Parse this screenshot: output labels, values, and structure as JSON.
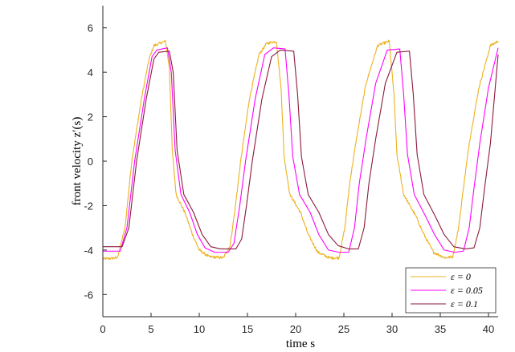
{
  "chart_data": {
    "type": "line",
    "xlabel": "time s",
    "ylabel": "front velocity z′(s)",
    "xlim": [
      0,
      41
    ],
    "ylim": [
      -7,
      7
    ],
    "xticks": [
      0,
      5,
      10,
      15,
      20,
      25,
      30,
      35,
      40
    ],
    "yticks": [
      -6,
      -4,
      -2,
      0,
      2,
      4,
      6
    ],
    "xtick_labels": [
      "0",
      "5",
      "10",
      "15",
      "20",
      "25",
      "30",
      "35",
      "40"
    ],
    "ytick_labels": [
      "-6",
      "-4",
      "-2",
      "0",
      "2",
      "4",
      "6"
    ],
    "grid": false,
    "legend_position": "bottom-right",
    "series": [
      {
        "name": "ε = 0",
        "color": "#EDB120",
        "noisy": true,
        "points": [
          [
            0,
            -4.4
          ],
          [
            1.5,
            -4.35
          ],
          [
            2.3,
            -3.0
          ],
          [
            3.0,
            0.0
          ],
          [
            4.0,
            2.8
          ],
          [
            4.8,
            4.6
          ],
          [
            5.3,
            5.2
          ],
          [
            6.5,
            5.4
          ],
          [
            6.9,
            4.2
          ],
          [
            7.2,
            0.5
          ],
          [
            7.6,
            -1.5
          ],
          [
            8.5,
            -2.3
          ],
          [
            9.3,
            -3.3
          ],
          [
            10.0,
            -4.0
          ],
          [
            11.0,
            -4.3
          ],
          [
            12.5,
            -4.35
          ],
          [
            13.2,
            -3.8
          ],
          [
            13.7,
            -2.2
          ],
          [
            14.3,
            0.0
          ],
          [
            15.2,
            2.8
          ],
          [
            16.2,
            4.8
          ],
          [
            17.0,
            5.3
          ],
          [
            18.0,
            5.4
          ],
          [
            18.5,
            3.2
          ],
          [
            18.8,
            0.2
          ],
          [
            19.4,
            -1.5
          ],
          [
            20.5,
            -2.3
          ],
          [
            21.3,
            -3.3
          ],
          [
            22.3,
            -4.1
          ],
          [
            23.5,
            -4.35
          ],
          [
            24.5,
            -4.35
          ],
          [
            25.1,
            -3.0
          ],
          [
            25.6,
            -1.0
          ],
          [
            26.3,
            1.0
          ],
          [
            27.3,
            3.5
          ],
          [
            28.5,
            5.2
          ],
          [
            29.7,
            5.4
          ],
          [
            30.2,
            3.0
          ],
          [
            30.5,
            0.3
          ],
          [
            31.2,
            -1.5
          ],
          [
            32.5,
            -2.5
          ],
          [
            33.3,
            -3.3
          ],
          [
            34.3,
            -4.1
          ],
          [
            35.5,
            -4.35
          ],
          [
            36.3,
            -4.3
          ],
          [
            36.9,
            -3.0
          ],
          [
            37.4,
            -1.2
          ],
          [
            38.0,
            0.8
          ],
          [
            39.0,
            3.3
          ],
          [
            40.2,
            5.2
          ],
          [
            41.0,
            5.4
          ]
        ]
      },
      {
        "name": "ε = 0.05",
        "color": "#FF00FF",
        "noisy": false,
        "points": [
          [
            0,
            -4.05
          ],
          [
            1.8,
            -4.05
          ],
          [
            2.5,
            -3.0
          ],
          [
            3.3,
            0.0
          ],
          [
            4.3,
            2.8
          ],
          [
            5.1,
            4.7
          ],
          [
            5.6,
            5.0
          ],
          [
            6.7,
            5.1
          ],
          [
            7.1,
            4.0
          ],
          [
            7.5,
            0.5
          ],
          [
            8.1,
            -1.5
          ],
          [
            9.0,
            -2.3
          ],
          [
            9.8,
            -3.3
          ],
          [
            10.6,
            -3.9
          ],
          [
            11.6,
            -4.1
          ],
          [
            13.0,
            -4.1
          ],
          [
            13.6,
            -3.7
          ],
          [
            14.2,
            -2.0
          ],
          [
            14.8,
            0.0
          ],
          [
            15.8,
            2.8
          ],
          [
            16.8,
            4.8
          ],
          [
            17.7,
            5.1
          ],
          [
            18.9,
            5.05
          ],
          [
            19.3,
            3.0
          ],
          [
            19.7,
            0.2
          ],
          [
            20.4,
            -1.5
          ],
          [
            21.5,
            -2.3
          ],
          [
            22.4,
            -3.3
          ],
          [
            23.4,
            -4.0
          ],
          [
            24.5,
            -4.1
          ],
          [
            25.5,
            -4.1
          ],
          [
            26.1,
            -3.0
          ],
          [
            26.6,
            -1.0
          ],
          [
            27.3,
            1.0
          ],
          [
            28.3,
            3.5
          ],
          [
            29.5,
            5.0
          ],
          [
            30.8,
            5.05
          ],
          [
            31.2,
            3.0
          ],
          [
            31.6,
            0.3
          ],
          [
            32.3,
            -1.5
          ],
          [
            33.5,
            -2.5
          ],
          [
            34.4,
            -3.3
          ],
          [
            35.4,
            -4.0
          ],
          [
            36.5,
            -4.1
          ],
          [
            37.4,
            -4.05
          ],
          [
            38.0,
            -3.0
          ],
          [
            38.5,
            -1.2
          ],
          [
            39.1,
            0.8
          ],
          [
            40.0,
            3.3
          ],
          [
            41.0,
            5.1
          ]
        ]
      },
      {
        "name": "ε = 0.1",
        "color": "#8B1A3A",
        "noisy": false,
        "points": [
          [
            0,
            -3.85
          ],
          [
            2.0,
            -3.85
          ],
          [
            2.7,
            -3.0
          ],
          [
            3.5,
            0.0
          ],
          [
            4.5,
            2.8
          ],
          [
            5.3,
            4.6
          ],
          [
            5.8,
            4.9
          ],
          [
            6.9,
            4.95
          ],
          [
            7.3,
            4.0
          ],
          [
            7.7,
            0.5
          ],
          [
            8.4,
            -1.5
          ],
          [
            9.4,
            -2.3
          ],
          [
            10.3,
            -3.3
          ],
          [
            11.2,
            -3.85
          ],
          [
            12.2,
            -3.95
          ],
          [
            13.8,
            -3.95
          ],
          [
            14.4,
            -3.5
          ],
          [
            14.9,
            -2.0
          ],
          [
            15.5,
            0.0
          ],
          [
            16.5,
            2.8
          ],
          [
            17.5,
            4.7
          ],
          [
            18.4,
            5.0
          ],
          [
            19.8,
            4.95
          ],
          [
            20.2,
            3.0
          ],
          [
            20.6,
            0.2
          ],
          [
            21.3,
            -1.5
          ],
          [
            22.4,
            -2.3
          ],
          [
            23.4,
            -3.3
          ],
          [
            24.4,
            -3.8
          ],
          [
            25.5,
            -3.95
          ],
          [
            26.5,
            -3.95
          ],
          [
            27.1,
            -3.0
          ],
          [
            27.6,
            -1.0
          ],
          [
            28.3,
            1.0
          ],
          [
            29.3,
            3.5
          ],
          [
            30.5,
            4.9
          ],
          [
            31.8,
            4.95
          ],
          [
            32.2,
            3.0
          ],
          [
            32.6,
            0.3
          ],
          [
            33.3,
            -1.5
          ],
          [
            34.5,
            -2.5
          ],
          [
            35.4,
            -3.3
          ],
          [
            36.4,
            -3.85
          ],
          [
            37.6,
            -3.95
          ],
          [
            38.5,
            -3.9
          ],
          [
            39.1,
            -3.0
          ],
          [
            39.6,
            -1.2
          ],
          [
            40.2,
            0.8
          ],
          [
            41.0,
            4.8
          ]
        ]
      }
    ]
  }
}
